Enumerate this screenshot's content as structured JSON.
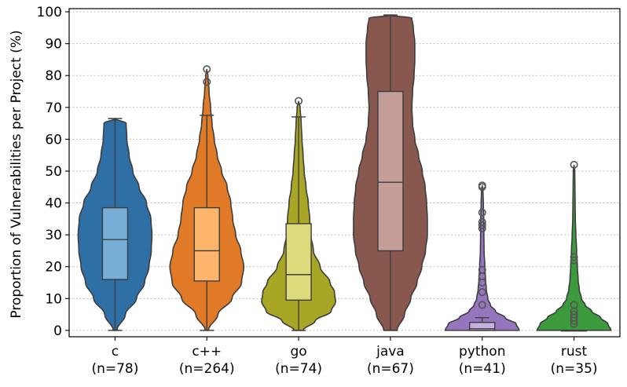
{
  "chart_data": {
    "type": "violin",
    "title": "",
    "xlabel": "",
    "ylabel": "Proportion of Vulnerabilities per Project (%)",
    "ylim": [
      -2,
      101
    ],
    "yticks": [
      0,
      10,
      20,
      30,
      40,
      50,
      60,
      70,
      80,
      90,
      100
    ],
    "grid": "horizontal dotted",
    "categories": [
      "c",
      "c++",
      "go",
      "java",
      "python",
      "rust"
    ],
    "counts": [
      "(n=78)",
      "(n=264)",
      "(n=74)",
      "(n=67)",
      "(n=41)",
      "(n=35)"
    ],
    "series": [
      {
        "category": "c",
        "n": 78,
        "color": "#2e6fa6",
        "box_color": "#78afd9",
        "box": {
          "whislo": 0,
          "q1": 16,
          "median": 28.5,
          "q3": 38.5,
          "whishi": 66.5
        },
        "fliers": [],
        "density": [
          [
            0,
            0.05
          ],
          [
            5,
            0.28
          ],
          [
            10,
            0.58
          ],
          [
            15,
            0.8
          ],
          [
            20,
            0.92
          ],
          [
            25,
            0.98
          ],
          [
            30,
            1.0
          ],
          [
            35,
            0.97
          ],
          [
            40,
            0.85
          ],
          [
            45,
            0.65
          ],
          [
            50,
            0.48
          ],
          [
            55,
            0.38
          ],
          [
            60,
            0.32
          ],
          [
            65,
            0.3
          ],
          [
            66.5,
            0.0
          ]
        ]
      },
      {
        "category": "c++",
        "n": 264,
        "color": "#e07a26",
        "box_color": "#fdb46b",
        "box": {
          "whislo": 0,
          "q1": 15.5,
          "median": 25,
          "q3": 38.5,
          "whishi": 67.5
        },
        "fliers": [
          78,
          82
        ],
        "density": [
          [
            0,
            0.04
          ],
          [
            5,
            0.3
          ],
          [
            10,
            0.68
          ],
          [
            15,
            0.94
          ],
          [
            20,
            1.0
          ],
          [
            25,
            0.92
          ],
          [
            30,
            0.78
          ],
          [
            35,
            0.7
          ],
          [
            40,
            0.65
          ],
          [
            45,
            0.55
          ],
          [
            50,
            0.4
          ],
          [
            55,
            0.28
          ],
          [
            60,
            0.2
          ],
          [
            65,
            0.14
          ],
          [
            70,
            0.1
          ],
          [
            75,
            0.06
          ],
          [
            80,
            0.03
          ],
          [
            82,
            0.0
          ]
        ]
      },
      {
        "category": "go",
        "n": 74,
        "color": "#a8a624",
        "box_color": "#dcda7a",
        "box": {
          "whislo": 0,
          "q1": 9.5,
          "median": 17.5,
          "q3": 33.5,
          "whishi": 67
        },
        "fliers": [
          72
        ],
        "density": [
          [
            0,
            0.12
          ],
          [
            3,
            0.45
          ],
          [
            6,
            0.88
          ],
          [
            9,
            1.0
          ],
          [
            12,
            0.97
          ],
          [
            15,
            0.85
          ],
          [
            20,
            0.58
          ],
          [
            25,
            0.4
          ],
          [
            30,
            0.33
          ],
          [
            35,
            0.3
          ],
          [
            40,
            0.26
          ],
          [
            45,
            0.2
          ],
          [
            50,
            0.15
          ],
          [
            55,
            0.12
          ],
          [
            60,
            0.09
          ],
          [
            65,
            0.07
          ],
          [
            70,
            0.04
          ],
          [
            72,
            0.0
          ]
        ]
      },
      {
        "category": "java",
        "n": 67,
        "color": "#88584f",
        "box_color": "#c49e97",
        "box": {
          "whislo": 0,
          "q1": 25,
          "median": 46.5,
          "q3": 75,
          "whishi": 99
        },
        "fliers": [],
        "density": [
          [
            0,
            0.18
          ],
          [
            5,
            0.38
          ],
          [
            10,
            0.55
          ],
          [
            15,
            0.72
          ],
          [
            20,
            0.85
          ],
          [
            25,
            0.95
          ],
          [
            30,
            1.0
          ],
          [
            35,
            1.0
          ],
          [
            40,
            0.98
          ],
          [
            45,
            0.94
          ],
          [
            50,
            0.86
          ],
          [
            55,
            0.76
          ],
          [
            60,
            0.66
          ],
          [
            65,
            0.6
          ],
          [
            70,
            0.58
          ],
          [
            75,
            0.6
          ],
          [
            80,
            0.64
          ],
          [
            85,
            0.66
          ],
          [
            90,
            0.66
          ],
          [
            95,
            0.62
          ],
          [
            98,
            0.58
          ],
          [
            99,
            0.0
          ]
        ]
      },
      {
        "category": "python",
        "n": 41,
        "color": "#9575be",
        "box_color": "#c6b0dd",
        "box": {
          "whislo": 0,
          "q1": 0,
          "median": 0.5,
          "q3": 2.5,
          "whishi": 4
        },
        "fliers": [
          8,
          12,
          15,
          17,
          19,
          32,
          33,
          34,
          37,
          45,
          45.5
        ],
        "density": [
          [
            0,
            1.0
          ],
          [
            2,
            0.92
          ],
          [
            4,
            0.62
          ],
          [
            6,
            0.36
          ],
          [
            8,
            0.22
          ],
          [
            10,
            0.15
          ],
          [
            13,
            0.11
          ],
          [
            16,
            0.09
          ],
          [
            20,
            0.07
          ],
          [
            25,
            0.05
          ],
          [
            30,
            0.045
          ],
          [
            35,
            0.04
          ],
          [
            40,
            0.03
          ],
          [
            44,
            0.02
          ],
          [
            45.5,
            0.0
          ]
        ]
      },
      {
        "category": "rust",
        "n": 35,
        "color": "#3b9a3c",
        "box_color": "#88c989",
        "box": {
          "whislo": 0,
          "q1": 0,
          "median": 0,
          "q3": 0,
          "whishi": 0
        },
        "fliers": [
          2,
          3,
          4,
          5,
          6,
          8,
          22,
          23,
          52
        ],
        "density": [
          [
            0,
            1.0
          ],
          [
            2,
            0.92
          ],
          [
            4,
            0.72
          ],
          [
            6,
            0.48
          ],
          [
            8,
            0.3
          ],
          [
            10,
            0.2
          ],
          [
            13,
            0.14
          ],
          [
            16,
            0.11
          ],
          [
            20,
            0.09
          ],
          [
            25,
            0.07
          ],
          [
            30,
            0.05
          ],
          [
            35,
            0.035
          ],
          [
            40,
            0.03
          ],
          [
            45,
            0.025
          ],
          [
            50,
            0.02
          ],
          [
            52,
            0.0
          ]
        ]
      }
    ]
  }
}
